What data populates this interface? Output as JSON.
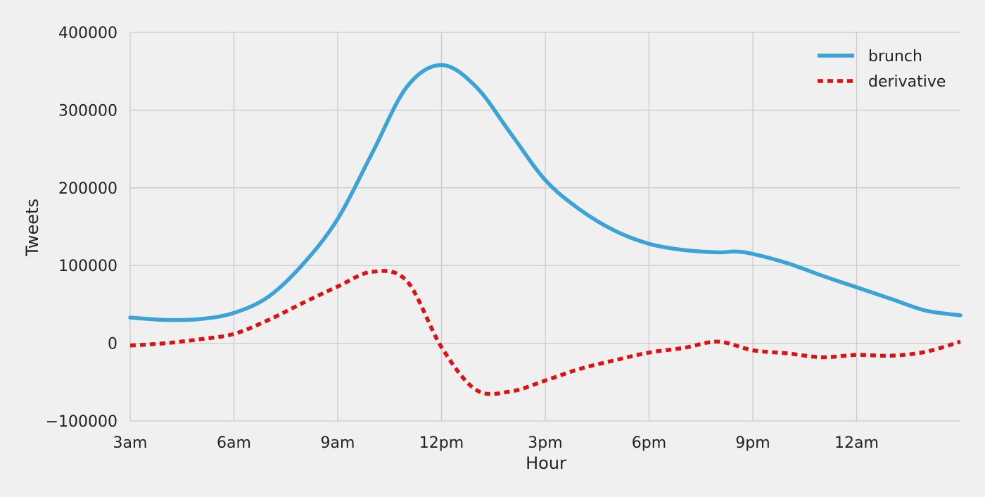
{
  "chart_data": {
    "type": "line",
    "title": "",
    "xlabel": "Hour",
    "ylabel": "Tweets",
    "x_unit": "hours since 3am",
    "xlim": [
      0,
      24
    ],
    "ylim": [
      -100000,
      400000
    ],
    "x_ticks": [
      {
        "value": 0,
        "label": "3am"
      },
      {
        "value": 3,
        "label": "6am"
      },
      {
        "value": 6,
        "label": "9am"
      },
      {
        "value": 9,
        "label": "12pm"
      },
      {
        "value": 12,
        "label": "3pm"
      },
      {
        "value": 15,
        "label": "6pm"
      },
      {
        "value": 18,
        "label": "9pm"
      },
      {
        "value": 21,
        "label": "12am"
      }
    ],
    "y_ticks": [
      {
        "value": -100000,
        "label": "−100000"
      },
      {
        "value": 0,
        "label": "0"
      },
      {
        "value": 100000,
        "label": "100000"
      },
      {
        "value": 200000,
        "label": "200000"
      },
      {
        "value": 300000,
        "label": "300000"
      },
      {
        "value": 400000,
        "label": "400000"
      }
    ],
    "grid": true,
    "legend_position": "top-right",
    "series": [
      {
        "name": "brunch",
        "color": "#3ba3d6",
        "style": "solid",
        "x": [
          0,
          1,
          2,
          3,
          4,
          5,
          6,
          7,
          8,
          9,
          10,
          11,
          12,
          13,
          14,
          15,
          16,
          17,
          17.5,
          18,
          19,
          20,
          21,
          22,
          23,
          24
        ],
        "y": [
          33000,
          30000,
          31000,
          39000,
          60000,
          102000,
          160000,
          245000,
          330000,
          358000,
          330000,
          270000,
          210000,
          172000,
          145000,
          128000,
          120000,
          117000,
          118000,
          115000,
          103000,
          87000,
          72000,
          57000,
          42000,
          36000
        ]
      },
      {
        "name": "derivative",
        "color": "#dd1111",
        "style": "dotted",
        "x": [
          0,
          1,
          2,
          3,
          4,
          5,
          6,
          7,
          8,
          9,
          10,
          11,
          12,
          13,
          14,
          15,
          16,
          17,
          18,
          19,
          20,
          21,
          22,
          23,
          24
        ],
        "y": [
          -3000,
          0,
          5000,
          12000,
          30000,
          52000,
          73000,
          92000,
          80000,
          -5000,
          -60000,
          -62000,
          -48000,
          -33000,
          -22000,
          -12000,
          -6000,
          2000,
          -9000,
          -13000,
          -18000,
          -15000,
          -16000,
          -11000,
          2000
        ]
      }
    ]
  }
}
